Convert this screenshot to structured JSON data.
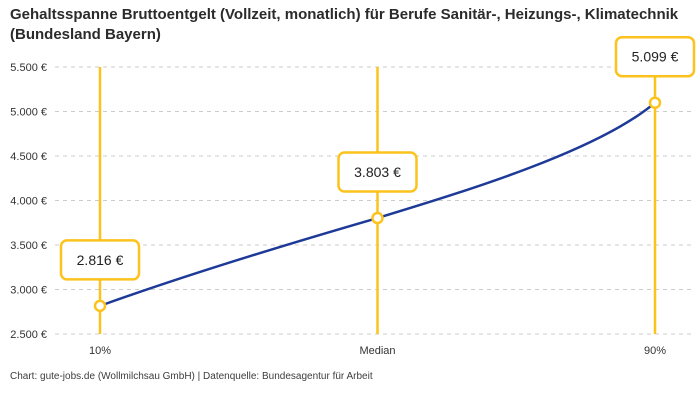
{
  "header": {
    "title": "Gehaltsspanne Bruttoentgelt (Vollzeit, monatlich) für Berufe Sanitär-, Heizungs-, Klimatechnik (Bundesland Bayern)"
  },
  "footer": {
    "credit": "Chart: gute-jobs.de (Wollmilchsau GmbH) | Datenquelle: Bundesagentur für Arbeit"
  },
  "chart_data": {
    "type": "line",
    "categories": [
      "10%",
      "Median",
      "90%"
    ],
    "values": [
      2816,
      3803,
      5099
    ],
    "value_labels": [
      "2.816 €",
      "3.803 €",
      "5.099 €"
    ],
    "title": "Gehaltsspanne Bruttoentgelt (Vollzeit, monatlich) für Berufe Sanitär-, Heizungs-, Klimatechnik (Bundesland Bayern)",
    "xlabel": "",
    "ylabel": "",
    "ylim": [
      2500,
      5500
    ],
    "ytick_step": 500,
    "ytick_labels": [
      "2.500 €",
      "3.000 €",
      "3.500 €",
      "4.000 €",
      "4.500 €",
      "5.000 €",
      "5.500 €"
    ],
    "grid": "horizontal-dashed",
    "legend": "none",
    "annotations": "each quantile has a vertical accent line and a framed value label above its data point",
    "colors": {
      "line": "#1e3a98",
      "accent": "#fcc31d",
      "marker_fill": "#ffffff",
      "grid": "#cccccc",
      "axis_text": "#333333",
      "label_text": "#222222"
    }
  }
}
